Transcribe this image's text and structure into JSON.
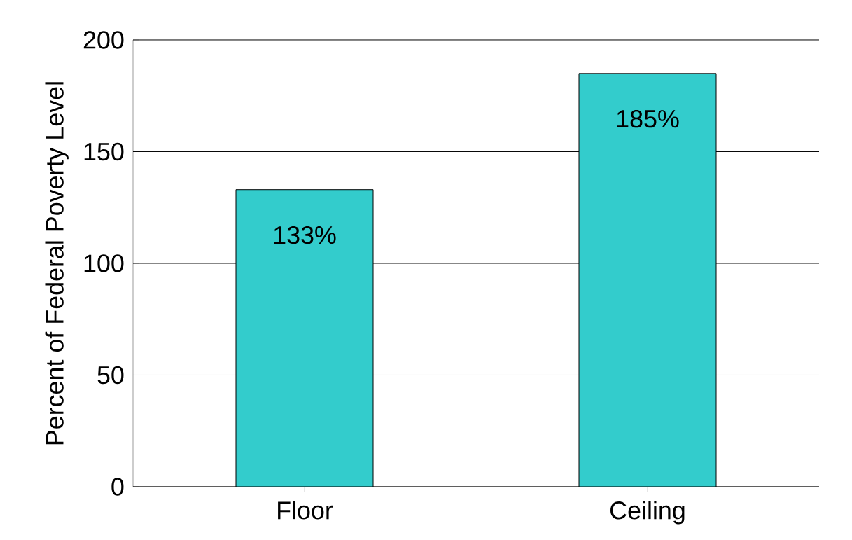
{
  "chart_data": {
    "type": "bar",
    "ylabel": "Percent of Federal Poverty Level",
    "categories": [
      "Floor",
      "Ceiling"
    ],
    "values": [
      133,
      185
    ],
    "value_labels": [
      "133%",
      "185%"
    ],
    "color": "#33cccc",
    "ylim": [
      0,
      200
    ],
    "yticks": [
      0,
      50,
      100,
      150,
      200
    ],
    "grid": "y"
  }
}
